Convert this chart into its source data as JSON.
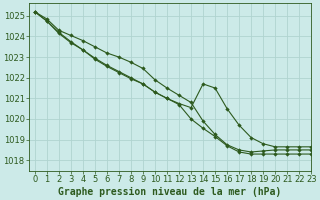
{
  "title": "Graphe pression niveau de la mer (hPa)",
  "background_color": "#cceae8",
  "grid_color": "#b0d4d0",
  "line_color": "#2d5a1e",
  "xlim": [
    -0.5,
    23
  ],
  "ylim": [
    1017.5,
    1025.6
  ],
  "yticks": [
    1018,
    1019,
    1020,
    1021,
    1022,
    1023,
    1024,
    1025
  ],
  "xticks": [
    0,
    1,
    2,
    3,
    4,
    5,
    6,
    7,
    8,
    9,
    10,
    11,
    12,
    13,
    14,
    15,
    16,
    17,
    18,
    19,
    20,
    21,
    22,
    23
  ],
  "series": [
    [
      1025.2,
      1024.85,
      1024.3,
      1024.05,
      1023.8,
      1023.5,
      1023.2,
      1023.0,
      1022.75,
      1022.45,
      1021.9,
      1021.5,
      1021.15,
      1020.8,
      1019.9,
      1019.25,
      1018.75,
      1018.5,
      1018.4,
      1018.45,
      1018.5,
      1018.5,
      1018.5,
      1018.5
    ],
    [
      1025.2,
      1024.75,
      1024.2,
      1023.75,
      1023.35,
      1022.95,
      1022.6,
      1022.3,
      1022.0,
      1021.7,
      1021.3,
      1021.0,
      1020.7,
      1020.0,
      1019.55,
      1019.15,
      1018.7,
      1018.4,
      1018.3,
      1018.3,
      1018.3,
      1018.3,
      1018.3,
      1018.3
    ],
    [
      1025.2,
      1024.75,
      1024.15,
      1023.7,
      1023.35,
      1022.9,
      1022.55,
      1022.25,
      1021.95,
      1021.7,
      1021.3,
      1021.0,
      1020.75,
      1020.55,
      1021.7,
      1021.5,
      1020.5,
      1019.7,
      1019.1,
      1018.8,
      1018.65,
      1018.65,
      1018.65,
      1018.65
    ]
  ],
  "xlabel_fontsize": 7,
  "tick_fontsize": 6
}
